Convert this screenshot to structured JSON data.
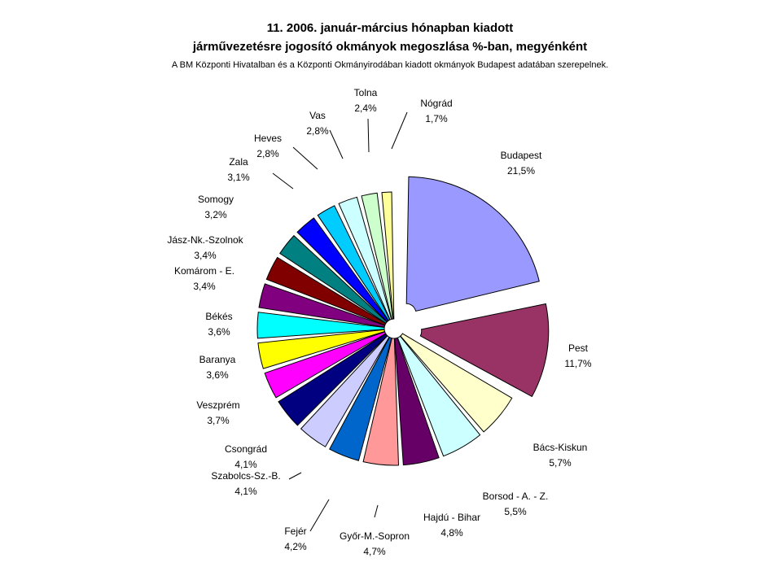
{
  "chart_data": {
    "type": "pie",
    "exploded": true,
    "title": "11. 2006. január-március hónapban kiadott",
    "title_line2": "járművezetésre jogosító okmányok megoszlása %-ban, megyénként",
    "subtitle": "A BM Központi Hivatalban és a Központi Okmányirodában kiadott okmányok Budapest adatában szerepelnek.",
    "slices": [
      {
        "label": "Budapest",
        "value": 21.5,
        "value_label": "21,5%",
        "color": "#9999FF"
      },
      {
        "label": "Pest",
        "value": 11.7,
        "value_label": "11,7%",
        "color": "#993366"
      },
      {
        "label": "Bács-Kiskun",
        "value": 5.7,
        "value_label": "5,7%",
        "color": "#FFFFCC"
      },
      {
        "label": "Borsod - A. - Z.",
        "value": 5.5,
        "value_label": "5,5%",
        "color": "#CCFFFF"
      },
      {
        "label": "Hajdú - Bihar",
        "value": 4.8,
        "value_label": "4,8%",
        "color": "#660066"
      },
      {
        "label": "Győr-M.-Sopron",
        "value": 4.7,
        "value_label": "4,7%",
        "color": "#FF9999"
      },
      {
        "label": "Fejér",
        "value": 4.2,
        "value_label": "4,2%",
        "color": "#0066CC"
      },
      {
        "label": "Szabolcs-Sz.-B.",
        "value": 4.1,
        "value_label": "4,1%",
        "color": "#CCCCFF"
      },
      {
        "label": "Csongrád",
        "value": 4.1,
        "value_label": "4,1%",
        "color": "#000080"
      },
      {
        "label": "Veszprém",
        "value": 3.7,
        "value_label": "3,7%",
        "color": "#FF00FF"
      },
      {
        "label": "Baranya",
        "value": 3.6,
        "value_label": "3,6%",
        "color": "#FFFF00"
      },
      {
        "label": "Békés",
        "value": 3.6,
        "value_label": "3,6%",
        "color": "#00FFFF"
      },
      {
        "label": "Komárom - E.",
        "value": 3.4,
        "value_label": "3,4%",
        "color": "#800080"
      },
      {
        "label": "Jász-Nk.-Szolnok",
        "value": 3.4,
        "value_label": "3,4%",
        "color": "#800000"
      },
      {
        "label": "Somogy",
        "value": 3.2,
        "value_label": "3,2%",
        "color": "#008080"
      },
      {
        "label": "Zala",
        "value": 3.1,
        "value_label": "3,1%",
        "color": "#0000FF"
      },
      {
        "label": "Heves",
        "value": 2.8,
        "value_label": "2,8%",
        "color": "#00CCFF"
      },
      {
        "label": "Vas",
        "value": 2.8,
        "value_label": "2,8%",
        "color": "#CCFFFF"
      },
      {
        "label": "Tolna",
        "value": 2.4,
        "value_label": "2,4%",
        "color": "#CCFFCC"
      },
      {
        "label": "Nógrád",
        "value": 1.7,
        "value_label": "1,7%",
        "color": "#FFFF99"
      }
    ]
  }
}
